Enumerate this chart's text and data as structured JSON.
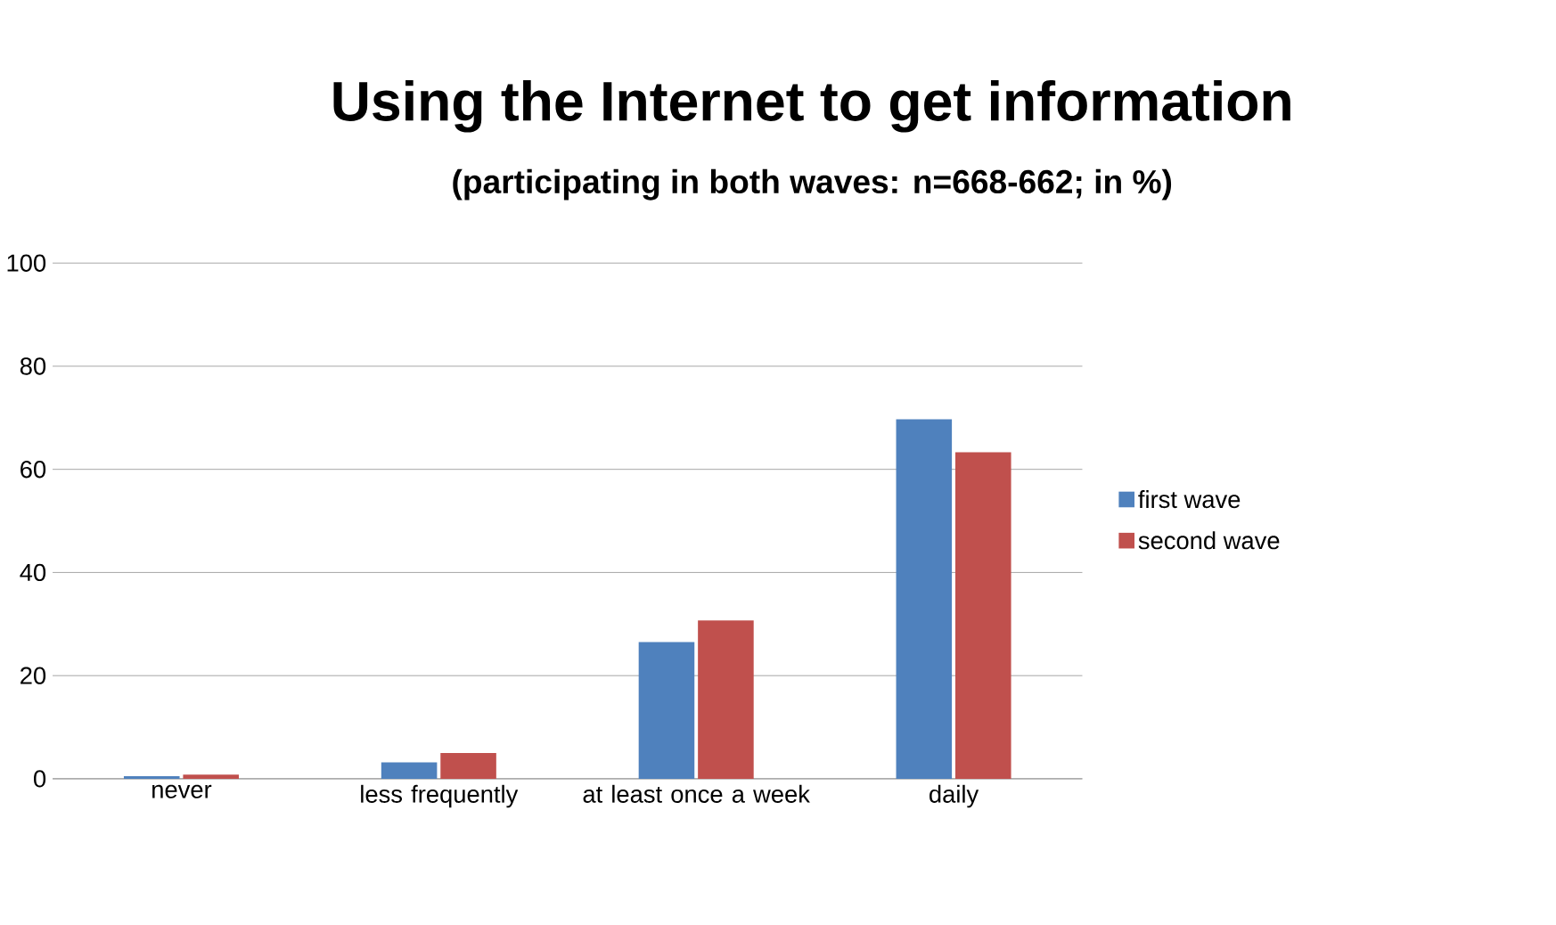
{
  "chart_data": {
    "type": "bar",
    "title": "Using the Internet to get information",
    "subtitle": "(participating in both waves: n=668-662; in %)",
    "categories": [
      "never",
      "less frequently",
      "at least once a week",
      "daily"
    ],
    "series": [
      {
        "name": "first wave",
        "color": "#4f81bd",
        "values": [
          0.5,
          3.2,
          26.5,
          69.7
        ]
      },
      {
        "name": "second wave",
        "color": "#c0504d",
        "values": [
          0.8,
          5.0,
          30.7,
          63.3
        ]
      }
    ],
    "ylim": [
      0,
      100
    ],
    "yticks": [
      0,
      20,
      40,
      60,
      80,
      100
    ],
    "grid": "y",
    "legend": "right"
  }
}
